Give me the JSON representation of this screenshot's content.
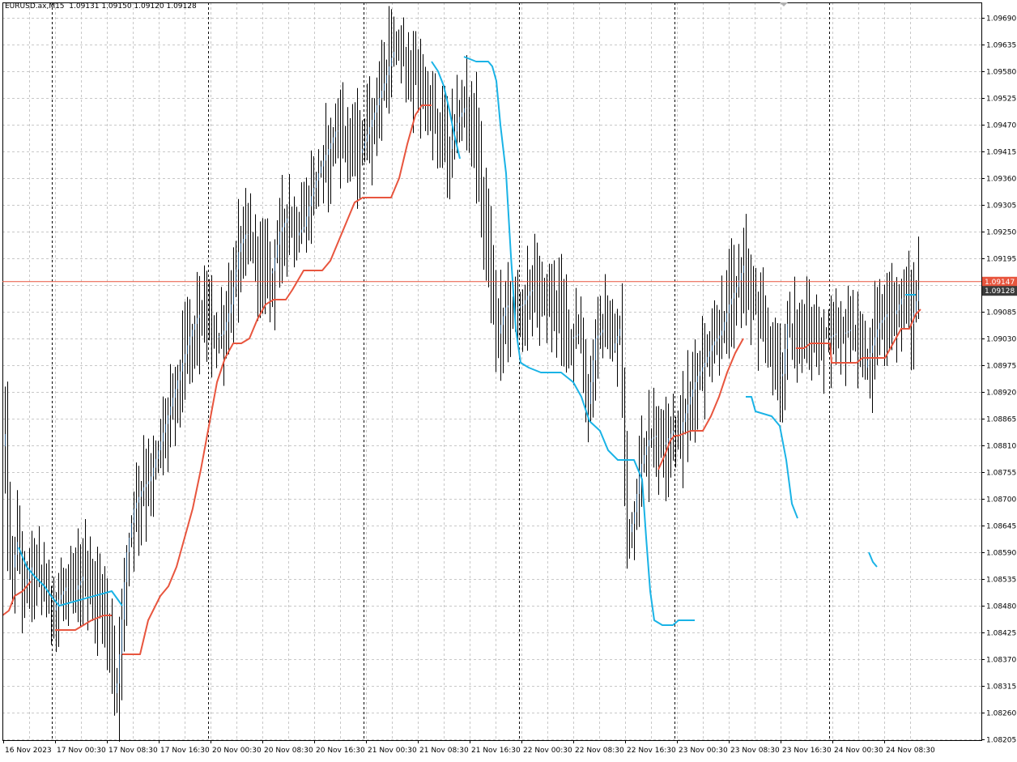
{
  "header": {
    "symbol_info": "EURUSD.ax,M15  1.09131 1.09150 1.09120 1.09128"
  },
  "colors": {
    "background": "#ffffff",
    "grid": "#c8c8c8",
    "candles": "#000000",
    "bull_candle_body": "#1f4e79",
    "upper_band": "#1ab3e6",
    "lower_band": "#e8553e",
    "price_line": "#e8553e",
    "bid_label_bg": "#3a3a3a",
    "period_separator": "#000000"
  },
  "chart_data": {
    "type": "candlestick",
    "symbol": "EURUSD.ax",
    "timeframe": "M15",
    "ohlc_last": {
      "open": 1.09131,
      "high": 1.0915,
      "low": 1.0912,
      "close": 1.09128
    },
    "ylim": [
      1.0817,
      1.0974
    ],
    "grid": true,
    "price_ticks": [
      "1.09690",
      "1.09635",
      "1.09580",
      "1.09525",
      "1.09470",
      "1.09415",
      "1.09360",
      "1.09305",
      "1.09250",
      "1.09195",
      "1.09140",
      "1.09085",
      "1.09030",
      "1.08975",
      "1.08920",
      "1.08865",
      "1.08810",
      "1.08755",
      "1.08700",
      "1.08645",
      "1.08590",
      "1.08535",
      "1.08480",
      "1.08425",
      "1.08370",
      "1.08315",
      "1.08260",
      "1.08205"
    ],
    "time_labels": [
      "16 Nov 2023",
      "17 Nov 00:30",
      "17 Nov 08:30",
      "17 Nov 16:30",
      "20 Nov 00:30",
      "20 Nov 08:30",
      "20 Nov 16:30",
      "21 Nov 00:30",
      "21 Nov 08:30",
      "21 Nov 16:30",
      "22 Nov 00:30",
      "22 Nov 08:30",
      "22 Nov 16:30",
      "23 Nov 00:30",
      "23 Nov 08:30",
      "23 Nov 16:30",
      "24 Nov 00:30",
      "24 Nov 08:30"
    ],
    "day_separators": [
      "17 Nov",
      "20 Nov",
      "21 Nov",
      "22 Nov",
      "23 Nov",
      "24 Nov"
    ],
    "price_line": {
      "value": 1.09147,
      "label": "1.09147"
    },
    "bid_line": {
      "value": 1.09128,
      "label": "1.09128"
    },
    "close_path_keypoints": [
      [
        0,
        1.0864
      ],
      [
        5,
        1.0892
      ],
      [
        8,
        1.0866
      ],
      [
        14,
        1.0855
      ],
      [
        22,
        1.0862
      ],
      [
        28,
        1.0851
      ],
      [
        38,
        1.0856
      ],
      [
        48,
        1.0855
      ],
      [
        58,
        1.085
      ],
      [
        66,
        1.0847
      ],
      [
        74,
        1.085
      ],
      [
        82,
        1.0852
      ],
      [
        92,
        1.0851
      ],
      [
        102,
        1.0854
      ],
      [
        110,
        1.0852
      ],
      [
        118,
        1.085
      ],
      [
        128,
        1.0848
      ],
      [
        136,
        1.084
      ],
      [
        142,
        1.0828
      ],
      [
        148,
        1.084
      ],
      [
        155,
        1.0858
      ],
      [
        165,
        1.0868
      ],
      [
        175,
        1.0872
      ],
      [
        185,
        1.0874
      ],
      [
        195,
        1.088
      ],
      [
        205,
        1.0886
      ],
      [
        215,
        1.0892
      ],
      [
        225,
        1.0898
      ],
      [
        235,
        1.0904
      ],
      [
        245,
        1.0908
      ],
      [
        255,
        1.0907
      ],
      [
        265,
        1.0903
      ],
      [
        275,
        1.0904
      ],
      [
        285,
        1.091
      ],
      [
        295,
        1.0922
      ],
      [
        305,
        1.0925
      ],
      [
        315,
        1.092
      ],
      [
        325,
        1.0918
      ],
      [
        335,
        1.0916
      ],
      [
        345,
        1.0925
      ],
      [
        355,
        1.0928
      ],
      [
        365,
        1.0924
      ],
      [
        375,
        1.0926
      ],
      [
        385,
        1.0933
      ],
      [
        395,
        1.0938
      ],
      [
        405,
        1.0942
      ],
      [
        415,
        1.0946
      ],
      [
        425,
        1.0945
      ],
      [
        435,
        1.0943
      ],
      [
        445,
        1.0941
      ],
      [
        455,
        1.0946
      ],
      [
        465,
        1.0951
      ],
      [
        475,
        1.0956
      ],
      [
        485,
        1.0962
      ],
      [
        495,
        1.0962
      ],
      [
        505,
        1.0958
      ],
      [
        515,
        1.0956
      ],
      [
        525,
        1.0952
      ],
      [
        535,
        1.0948
      ],
      [
        545,
        1.0945
      ],
      [
        555,
        1.0942
      ],
      [
        565,
        1.0948
      ],
      [
        575,
        1.0951
      ],
      [
        585,
        1.0946
      ],
      [
        593,
        1.0935
      ],
      [
        600,
        1.0925
      ],
      [
        608,
        1.091
      ],
      [
        615,
        1.0904
      ],
      [
        625,
        1.091
      ],
      [
        635,
        1.0909
      ],
      [
        645,
        1.091
      ],
      [
        655,
        1.0913
      ],
      [
        665,
        1.0913
      ],
      [
        675,
        1.0911
      ],
      [
        685,
        1.0911
      ],
      [
        695,
        1.0908
      ],
      [
        705,
        1.0903
      ],
      [
        715,
        1.0904
      ],
      [
        725,
        1.0888
      ],
      [
        735,
        1.0903
      ],
      [
        745,
        1.0905
      ],
      [
        755,
        1.09
      ],
      [
        765,
        1.0905
      ],
      [
        770,
        1.0879
      ],
      [
        775,
        1.0862
      ],
      [
        782,
        1.0866
      ],
      [
        790,
        1.0876
      ],
      [
        800,
        1.0882
      ],
      [
        810,
        1.0883
      ],
      [
        820,
        1.0881
      ],
      [
        830,
        1.0884
      ],
      [
        840,
        1.0884
      ],
      [
        850,
        1.089
      ],
      [
        860,
        1.0895
      ],
      [
        870,
        1.0898
      ],
      [
        880,
        1.0902
      ],
      [
        890,
        1.0904
      ],
      [
        900,
        1.091
      ],
      [
        910,
        1.0914
      ],
      [
        918,
        1.0918
      ],
      [
        925,
        1.0913
      ],
      [
        935,
        1.0908
      ],
      [
        945,
        1.0904
      ],
      [
        955,
        1.09
      ],
      [
        965,
        1.0894
      ],
      [
        972,
        1.0906
      ],
      [
        982,
        1.0904
      ],
      [
        992,
        1.0904
      ],
      [
        1002,
        1.0904
      ],
      [
        1012,
        1.0903
      ],
      [
        1022,
        1.0903
      ],
      [
        1032,
        1.0904
      ],
      [
        1042,
        1.0904
      ],
      [
        1052,
        1.0905
      ],
      [
        1060,
        1.09
      ],
      [
        1068,
        1.0897
      ],
      [
        1076,
        1.0901
      ],
      [
        1085,
        1.0906
      ],
      [
        1095,
        1.0908
      ],
      [
        1105,
        1.0908
      ],
      [
        1115,
        1.0912
      ],
      [
        1125,
        1.0906
      ],
      [
        1134,
        1.0913
      ]
    ],
    "upper_band_keypoints": [
      [
        20,
        1.086
      ],
      [
        30,
        1.0856
      ],
      [
        40,
        1.0854
      ],
      [
        52,
        1.0852
      ],
      [
        60,
        1.085
      ],
      [
        70,
        1.0848
      ],
      [
        135,
        1.0851
      ],
      [
        148,
        1.0848
      ],
      [
        null,
        null
      ],
      [
        530,
        1.096
      ],
      [
        538,
        1.0958
      ],
      [
        545,
        1.0955
      ],
      [
        552,
        1.095
      ],
      [
        558,
        1.0945
      ],
      [
        565,
        1.094
      ],
      [
        null,
        null
      ],
      [
        570,
        1.0961
      ],
      [
        585,
        1.096
      ],
      [
        600,
        1.096
      ],
      [
        605,
        1.0959
      ],
      [
        610,
        1.0956
      ],
      [
        615,
        1.0947
      ],
      [
        622,
        1.0937
      ],
      [
        628,
        1.092
      ],
      [
        634,
        1.0905
      ],
      [
        640,
        1.0898
      ],
      [
        650,
        1.0897
      ],
      [
        665,
        1.0896
      ],
      [
        690,
        1.0896
      ],
      [
        705,
        1.0894
      ],
      [
        715,
        1.0891
      ],
      [
        725,
        1.0886
      ],
      [
        738,
        1.0884
      ],
      [
        748,
        1.088
      ],
      [
        760,
        1.0878
      ],
      [
        780,
        1.0878
      ],
      [
        790,
        1.0874
      ],
      [
        795,
        1.0862
      ],
      [
        800,
        1.0851
      ],
      [
        805,
        1.0845
      ],
      [
        815,
        1.0844
      ],
      [
        828,
        1.0844
      ],
      [
        835,
        1.0845
      ],
      [
        848,
        1.0845
      ],
      [
        855,
        1.0845
      ],
      [
        null,
        null
      ],
      [
        918,
        1.0891
      ],
      [
        925,
        1.0891
      ],
      [
        930,
        1.0888
      ],
      [
        950,
        1.0887
      ],
      [
        960,
        1.0885
      ],
      [
        968,
        1.0878
      ],
      [
        975,
        1.0869
      ],
      [
        982,
        1.0866
      ],
      [
        null,
        null
      ],
      [
        1070,
        1.0859
      ],
      [
        1075,
        1.0857
      ],
      [
        1080,
        1.0856
      ],
      [
        null,
        null
      ],
      [
        1115,
        1.0912
      ],
      [
        1128,
        1.0912
      ]
    ],
    "lower_band_keypoints": [
      [
        0,
        1.0846
      ],
      [
        8,
        1.0847
      ],
      [
        15,
        1.085
      ],
      [
        25,
        1.0851
      ],
      [
        35,
        1.0853
      ],
      [
        null,
        null
      ],
      [
        65,
        1.0843
      ],
      [
        90,
        1.0843
      ],
      [
        100,
        1.0844
      ],
      [
        110,
        1.0845
      ],
      [
        125,
        1.0846
      ],
      [
        135,
        1.0846
      ],
      [
        null,
        null
      ],
      [
        148,
        1.0838
      ],
      [
        170,
        1.0838
      ],
      [
        180,
        1.0845
      ],
      [
        195,
        1.085
      ],
      [
        205,
        1.0852
      ],
      [
        215,
        1.0856
      ],
      [
        225,
        1.0862
      ],
      [
        235,
        1.0868
      ],
      [
        245,
        1.0876
      ],
      [
        255,
        1.0885
      ],
      [
        265,
        1.0894
      ],
      [
        275,
        1.0899
      ],
      [
        285,
        1.0902
      ],
      [
        295,
        1.0902
      ],
      [
        305,
        1.0903
      ],
      [
        315,
        1.0907
      ],
      [
        325,
        1.091
      ],
      [
        335,
        1.0911
      ],
      [
        350,
        1.0911
      ],
      [
        358,
        1.0913
      ],
      [
        365,
        1.0915
      ],
      [
        372,
        1.0917
      ],
      [
        380,
        1.0917
      ],
      [
        395,
        1.0917
      ],
      [
        405,
        1.0919
      ],
      [
        415,
        1.0923
      ],
      [
        425,
        1.0927
      ],
      [
        435,
        1.0931
      ],
      [
        445,
        1.0932
      ],
      [
        480,
        1.0932
      ],
      [
        490,
        1.0936
      ],
      [
        500,
        1.0943
      ],
      [
        510,
        1.0949
      ],
      [
        518,
        1.0951
      ],
      [
        530,
        1.0951
      ],
      [
        null,
        null
      ],
      [
        810,
        1.0876
      ],
      [
        818,
        1.0879
      ],
      [
        825,
        1.0882
      ],
      [
        830,
        1.0883
      ],
      [
        835,
        1.0883
      ],
      [
        850,
        1.0884
      ],
      [
        865,
        1.0884
      ],
      [
        875,
        1.0887
      ],
      [
        885,
        1.0891
      ],
      [
        895,
        1.0896
      ],
      [
        905,
        1.09
      ],
      [
        915,
        1.0903
      ],
      [
        null,
        null
      ],
      [
        980,
        1.0901
      ],
      [
        990,
        1.0901
      ],
      [
        998,
        1.0902
      ],
      [
        1005,
        1.0902
      ],
      [
        1015,
        1.0902
      ],
      [
        1022,
        1.0902
      ],
      [
        1024,
        1.0898
      ],
      [
        1055,
        1.0898
      ],
      [
        1062,
        1.0899
      ],
      [
        1090,
        1.0899
      ],
      [
        1100,
        1.0902
      ],
      [
        1110,
        1.0905
      ],
      [
        1120,
        1.0905
      ],
      [
        1128,
        1.0908
      ],
      [
        1134,
        1.0909
      ]
    ]
  }
}
